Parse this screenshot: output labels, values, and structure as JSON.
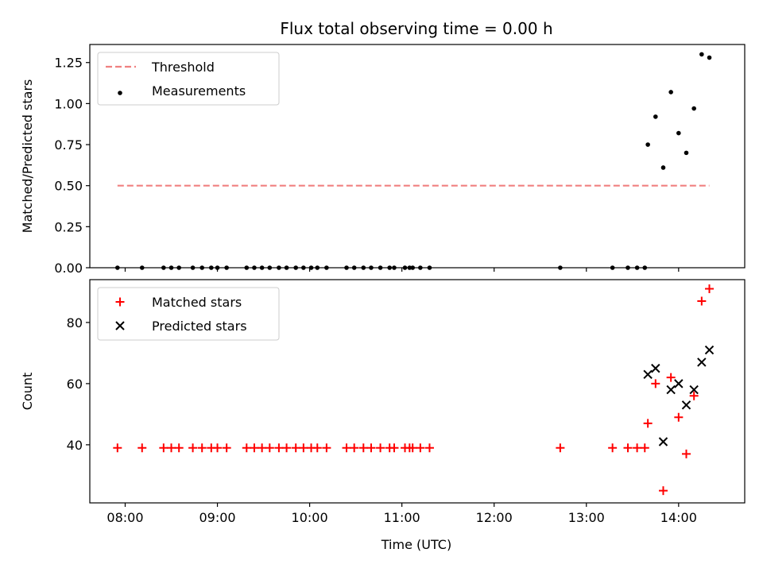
{
  "chart_data": [
    {
      "type": "scatter",
      "title": "Flux total observing time = 0.00 h",
      "xlabel": "",
      "ylabel": "Matched/Predicted stars",
      "xlim": [
        "07:37",
        "14:43"
      ],
      "ylim": [
        0,
        1.36
      ],
      "xticks": [
        "08:00",
        "09:00",
        "10:00",
        "11:00",
        "12:00",
        "13:00",
        "14:00"
      ],
      "yticks": [
        0.0,
        0.25,
        0.5,
        0.75,
        1.0,
        1.25
      ],
      "ytick_labels": [
        "0.00",
        "0.25",
        "0.50",
        "0.75",
        "1.00",
        "1.25"
      ],
      "show_xtick_labels": false,
      "grid": false,
      "legend": "top-left",
      "threshold": {
        "name": "Threshold",
        "value": 0.5,
        "x_range": [
          "07:55",
          "14:20"
        ],
        "color": "#f08080",
        "style": "dashed"
      },
      "series": [
        {
          "name": "Measurements",
          "marker": "dot",
          "color": "#000000",
          "x": [
            "07:55",
            "08:11",
            "08:25",
            "08:30",
            "08:35",
            "08:44",
            "08:50",
            "08:56",
            "09:00",
            "09:06",
            "09:19",
            "09:24",
            "09:29",
            "09:34",
            "09:40",
            "09:45",
            "09:51",
            "09:56",
            "10:01",
            "10:05",
            "10:11",
            "10:24",
            "10:29",
            "10:35",
            "10:40",
            "10:46",
            "10:52",
            "10:55",
            "11:02",
            "11:05",
            "11:07",
            "11:12",
            "11:18",
            "12:43",
            "13:17",
            "13:27",
            "13:33",
            "13:38",
            "13:40",
            "13:45",
            "13:50",
            "13:55",
            "14:00",
            "14:05",
            "14:10",
            "14:15",
            "14:20"
          ],
          "y": [
            0,
            0,
            0,
            0,
            0,
            0,
            0,
            0,
            0,
            0,
            0,
            0,
            0,
            0,
            0,
            0,
            0,
            0,
            0,
            0,
            0,
            0,
            0,
            0,
            0,
            0,
            0,
            0,
            0,
            0,
            0,
            0,
            0,
            0,
            0,
            0,
            0,
            0,
            0.75,
            0.92,
            0.61,
            1.07,
            0.82,
            0.7,
            0.97,
            1.3,
            1.28
          ]
        }
      ]
    },
    {
      "type": "scatter",
      "title": "",
      "xlabel": "Time (UTC)",
      "ylabel": "Count",
      "xlim": [
        "07:37",
        "14:43"
      ],
      "ylim": [
        21,
        94
      ],
      "xticks": [
        "08:00",
        "09:00",
        "10:00",
        "11:00",
        "12:00",
        "13:00",
        "14:00"
      ],
      "yticks": [
        40,
        60,
        80
      ],
      "ytick_labels": [
        "40",
        "60",
        "80"
      ],
      "show_xtick_labels": true,
      "grid": false,
      "legend": "top-left",
      "series": [
        {
          "name": "Matched stars",
          "marker": "plus",
          "color": "#ff0000",
          "x": [
            "07:55",
            "08:11",
            "08:25",
            "08:30",
            "08:35",
            "08:44",
            "08:50",
            "08:56",
            "09:00",
            "09:06",
            "09:19",
            "09:24",
            "09:29",
            "09:34",
            "09:40",
            "09:45",
            "09:51",
            "09:56",
            "10:01",
            "10:05",
            "10:11",
            "10:24",
            "10:29",
            "10:35",
            "10:40",
            "10:46",
            "10:52",
            "10:55",
            "11:02",
            "11:05",
            "11:07",
            "11:12",
            "11:18",
            "12:43",
            "13:17",
            "13:27",
            "13:33",
            "13:38",
            "13:40",
            "13:45",
            "13:50",
            "13:55",
            "14:00",
            "14:05",
            "14:10",
            "14:15",
            "14:20"
          ],
          "y": [
            39,
            39,
            39,
            39,
            39,
            39,
            39,
            39,
            39,
            39,
            39,
            39,
            39,
            39,
            39,
            39,
            39,
            39,
            39,
            39,
            39,
            39,
            39,
            39,
            39,
            39,
            39,
            39,
            39,
            39,
            39,
            39,
            39,
            39,
            39,
            39,
            39,
            39,
            47,
            60,
            25,
            62,
            49,
            37,
            56,
            87,
            91
          ]
        },
        {
          "name": "Predicted stars",
          "marker": "x",
          "color": "#000000",
          "x": [
            "13:40",
            "13:45",
            "13:50",
            "13:55",
            "14:00",
            "14:05",
            "14:10",
            "14:15",
            "14:20"
          ],
          "y": [
            63,
            65,
            41,
            58,
            60,
            53,
            58,
            67,
            71
          ]
        }
      ]
    }
  ]
}
